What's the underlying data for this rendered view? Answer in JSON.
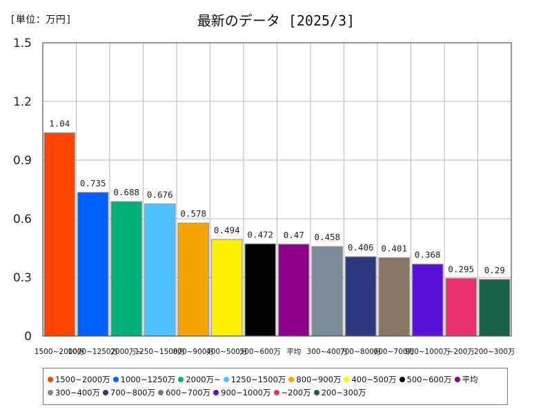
{
  "unit_label": "[単位：万円]",
  "title": "最新のデータ [2025/3]",
  "chart_data": {
    "type": "bar",
    "title": "最新のデータ [2025/3]",
    "ylim": [
      0,
      1.5
    ],
    "yticks": [
      "0",
      "0.3",
      "0.6",
      "0.9",
      "1.2",
      "1.5"
    ],
    "ytick_values": [
      0,
      0.3,
      0.6,
      0.9,
      1.2,
      1.5
    ],
    "grid": true,
    "legend_position": "bottom",
    "categories": [
      "1500~2000万",
      "1000~1250万",
      "2000万~",
      "1250~1500万",
      "800~900万",
      "400~500万",
      "500~600万",
      "平均",
      "300~400万",
      "700~800万",
      "600~700万",
      "900~1000万",
      "~200万",
      "200~300万"
    ],
    "values": [
      1.04,
      0.735,
      0.688,
      0.676,
      0.578,
      0.494,
      0.472,
      0.47,
      0.458,
      0.406,
      0.401,
      0.368,
      0.295,
      0.29
    ],
    "value_labels": [
      "1.04",
      "0.735",
      "0.688",
      "0.676",
      "0.578",
      "0.494",
      "0.472",
      "0.47",
      "0.458",
      "0.406",
      "0.401",
      "0.368",
      "0.295",
      "0.29"
    ],
    "colors": [
      "#ff4500",
      "#0060ff",
      "#00b07a",
      "#4fc3ff",
      "#f5a300",
      "#fff000",
      "#000000",
      "#8b008b",
      "#7a8a98",
      "#2b3a80",
      "#8a7565",
      "#5a10d6",
      "#e8306a",
      "#1a6048"
    ]
  }
}
